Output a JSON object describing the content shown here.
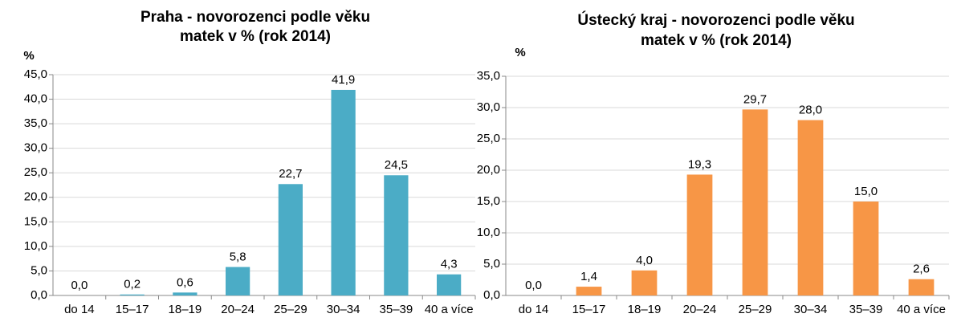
{
  "chart_data": [
    {
      "type": "bar",
      "title": [
        "Praha - novorozenci podle věku",
        "matek v % (rok 2014)"
      ],
      "y_label": "%",
      "categories": [
        "do 14",
        "15–17",
        "18–19",
        "20–24",
        "25–29",
        "30–34",
        "35–39",
        "40 a více"
      ],
      "values": [
        0.0,
        0.2,
        0.6,
        5.8,
        22.7,
        41.9,
        24.5,
        4.3
      ],
      "value_labels": [
        "0,0",
        "0,2",
        "0,6",
        "5,8",
        "22,7",
        "41,9",
        "24,5",
        "4,3"
      ],
      "color": "#4bacc6",
      "ylim": [
        0,
        45
      ],
      "yticks": [
        {
          "value": 0,
          "label": "0,0"
        },
        {
          "value": 5,
          "label": "5,0"
        },
        {
          "value": 10,
          "label": "10,0"
        },
        {
          "value": 15,
          "label": "15,0"
        },
        {
          "value": 20,
          "label": "20,0"
        },
        {
          "value": 25,
          "label": "25,0"
        },
        {
          "value": 30,
          "label": "30,0"
        },
        {
          "value": 35,
          "label": "35,0"
        },
        {
          "value": 40,
          "label": "40,0"
        },
        {
          "value": 45,
          "label": "45,0"
        }
      ],
      "grid": true
    },
    {
      "type": "bar",
      "title": [
        "Ústecký kraj - novorozenci podle věku",
        "matek v % (rok 2014)"
      ],
      "y_label": "%",
      "categories": [
        "do 14",
        "15–17",
        "18–19",
        "20–24",
        "25–29",
        "30–34",
        "35–39",
        "40 a více"
      ],
      "values": [
        0.0,
        1.4,
        4.0,
        19.3,
        29.7,
        28.0,
        15.0,
        2.6
      ],
      "value_labels": [
        "0,0",
        "1,4",
        "4,0",
        "19,3",
        "29,7",
        "28,0",
        "15,0",
        "2,6"
      ],
      "color": "#f79646",
      "ylim": [
        0,
        35
      ],
      "yticks": [
        {
          "value": 0,
          "label": "0,0"
        },
        {
          "value": 5,
          "label": "5,0"
        },
        {
          "value": 10,
          "label": "10,0"
        },
        {
          "value": 15,
          "label": "15,0"
        },
        {
          "value": 20,
          "label": "20,0"
        },
        {
          "value": 25,
          "label": "25,0"
        },
        {
          "value": 30,
          "label": "30,0"
        },
        {
          "value": 35,
          "label": "35,0"
        }
      ],
      "grid": true
    }
  ]
}
